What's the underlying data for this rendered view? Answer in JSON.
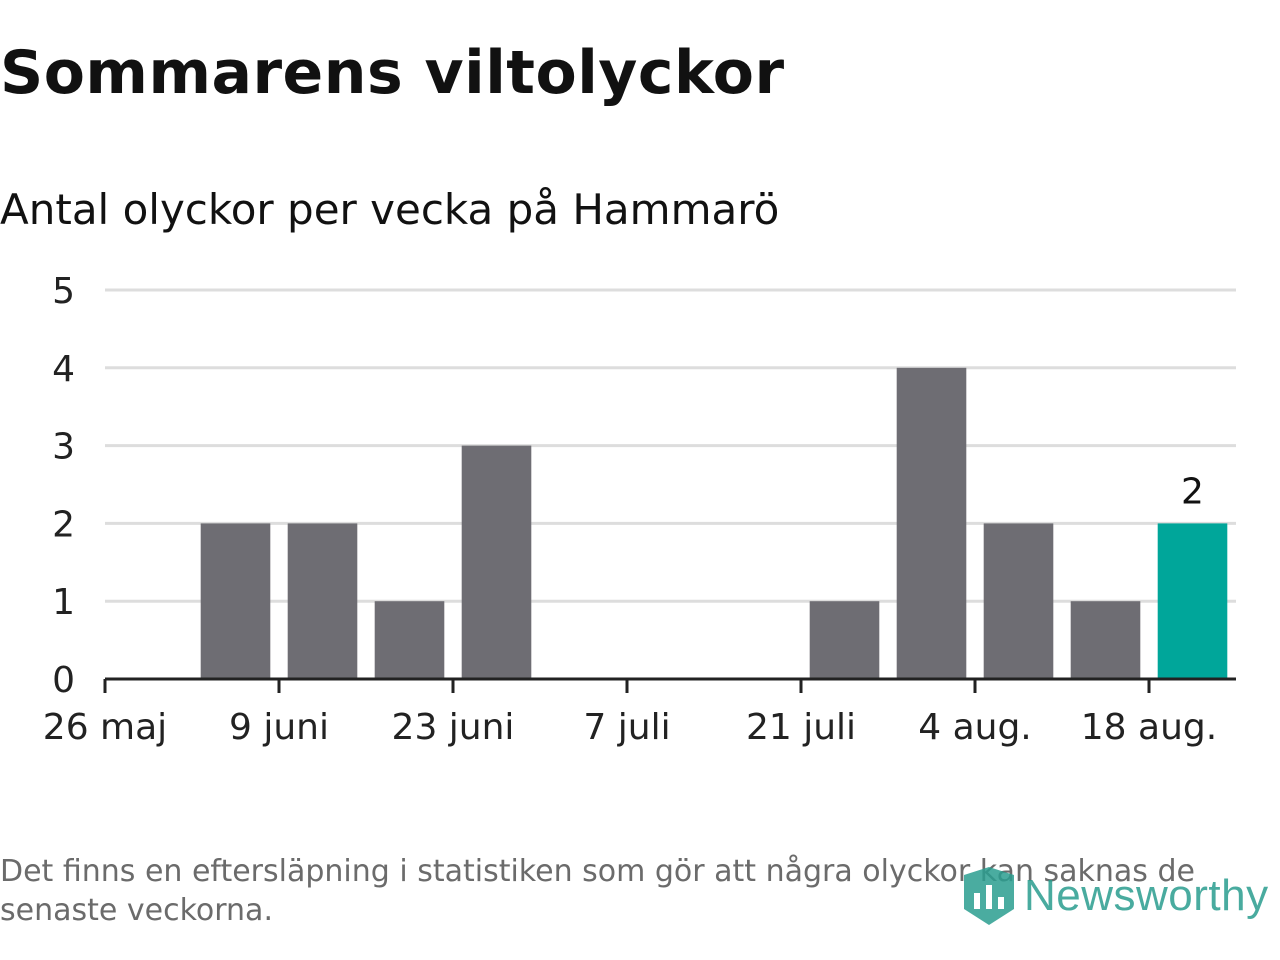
{
  "header": {
    "title": "Sommarens viltolyckor",
    "subtitle": "Antal olyckor per vecka på Hammarö"
  },
  "footer": {
    "note": "Det finns en eftersläpning i statistiken som gör att några olyckor kan saknas de senaste veckorna.",
    "brand": "Newsworthy"
  },
  "colors": {
    "bar": "#6e6d73",
    "highlight": "#00a69a",
    "grid": "#dddddd",
    "axis": "#222222",
    "brand": "#2a9d8f"
  },
  "chart_data": {
    "type": "bar",
    "title": "Sommarens viltolyckor",
    "subtitle": "Antal olyckor per vecka på Hammarö",
    "xlabel": "",
    "ylabel": "",
    "ylim": [
      0,
      5
    ],
    "yticks": [
      "0",
      "1",
      "2",
      "3",
      "4",
      "5"
    ],
    "grid": true,
    "legend": "none",
    "x_start": "2025-05-26",
    "x_end": "2025-08-25",
    "xtick_labels": [
      "26 maj",
      "9 juni",
      "23 juni",
      "7 juli",
      "21 juli",
      "4 aug.",
      "18 aug."
    ],
    "xtick_dates": [
      "2025-05-26",
      "2025-06-09",
      "2025-06-23",
      "2025-07-07",
      "2025-07-21",
      "2025-08-04",
      "2025-08-18"
    ],
    "categories": [
      "2025-05-26",
      "2025-06-02",
      "2025-06-09",
      "2025-06-16",
      "2025-06-23",
      "2025-06-30",
      "2025-07-07",
      "2025-07-14",
      "2025-07-21",
      "2025-07-28",
      "2025-08-04",
      "2025-08-11",
      "2025-08-18"
    ],
    "values": [
      0,
      2,
      2,
      1,
      3,
      0,
      0,
      0,
      1,
      4,
      2,
      1,
      2
    ],
    "highlight_index": 12,
    "highlight_label": "2"
  }
}
